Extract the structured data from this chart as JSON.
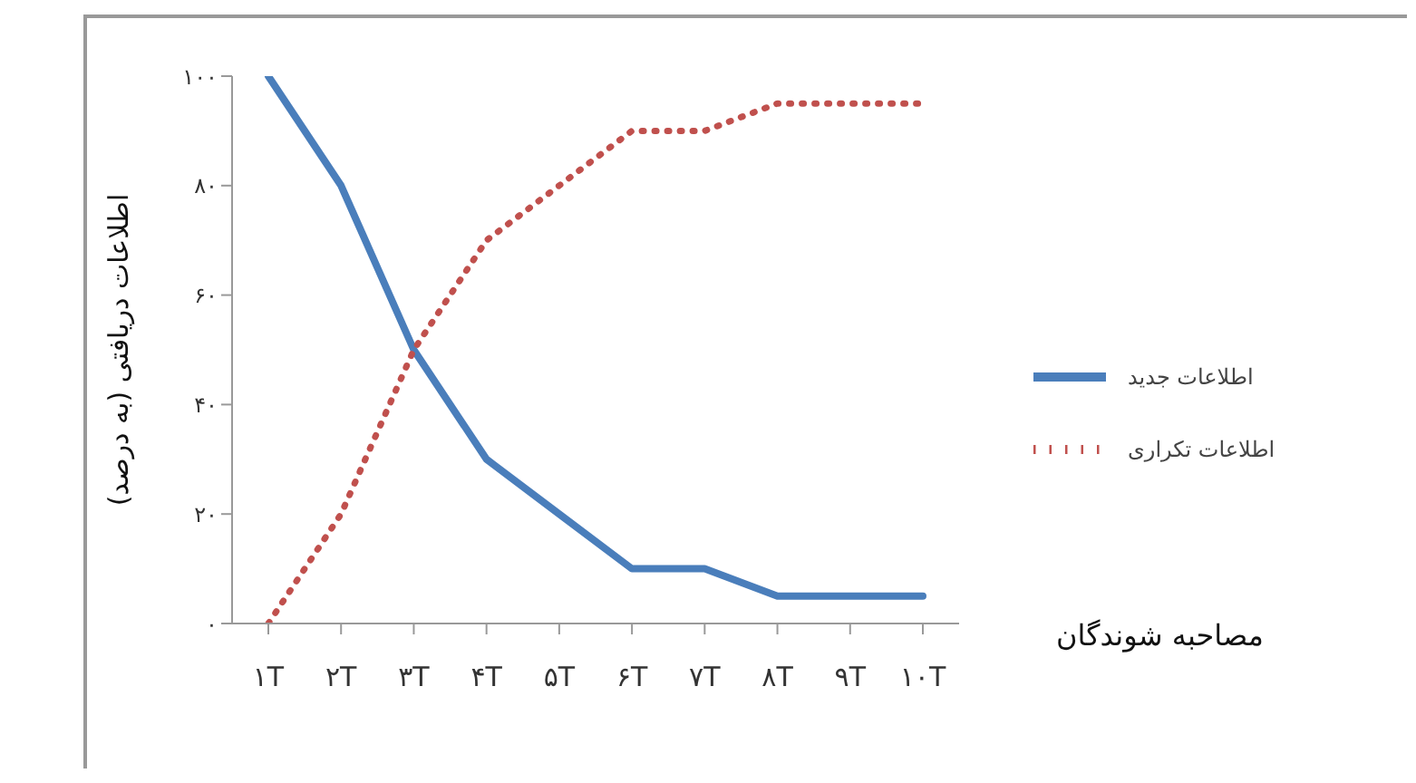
{
  "chart_data": {
    "type": "line",
    "annotations": [
      "مصاحبه شوندگان"
    ],
    "ylabel": "اطلاعات دریافتی (به درصد)",
    "categories": [
      "۱T",
      "۲T",
      "۳T",
      "۴T",
      "۵T",
      "۶T",
      "۷T",
      "۸T",
      "۹T",
      "۱۰T"
    ],
    "series": [
      {
        "name": "اطلاعات جدید",
        "color": "#4a7ebb",
        "line_style": "solid",
        "values": [
          100,
          80,
          50,
          30,
          20,
          10,
          10,
          5,
          5,
          5
        ]
      },
      {
        "name": "اطلاعات تکراری",
        "color": "#c0504d",
        "line_style": "dotted",
        "values": [
          0,
          20,
          50,
          70,
          80,
          90,
          90,
          95,
          95,
          95
        ]
      }
    ],
    "ylim": [
      0,
      100
    ],
    "yticks": [
      {
        "value": 0,
        "label": "۰"
      },
      {
        "value": 20,
        "label": "۲۰"
      },
      {
        "value": 40,
        "label": "۴۰"
      },
      {
        "value": 60,
        "label": "۶۰"
      },
      {
        "value": 80,
        "label": "۸۰"
      },
      {
        "value": 100,
        "label": "۱۰۰"
      }
    ],
    "grid": false,
    "legend": "right",
    "marker": "none"
  }
}
